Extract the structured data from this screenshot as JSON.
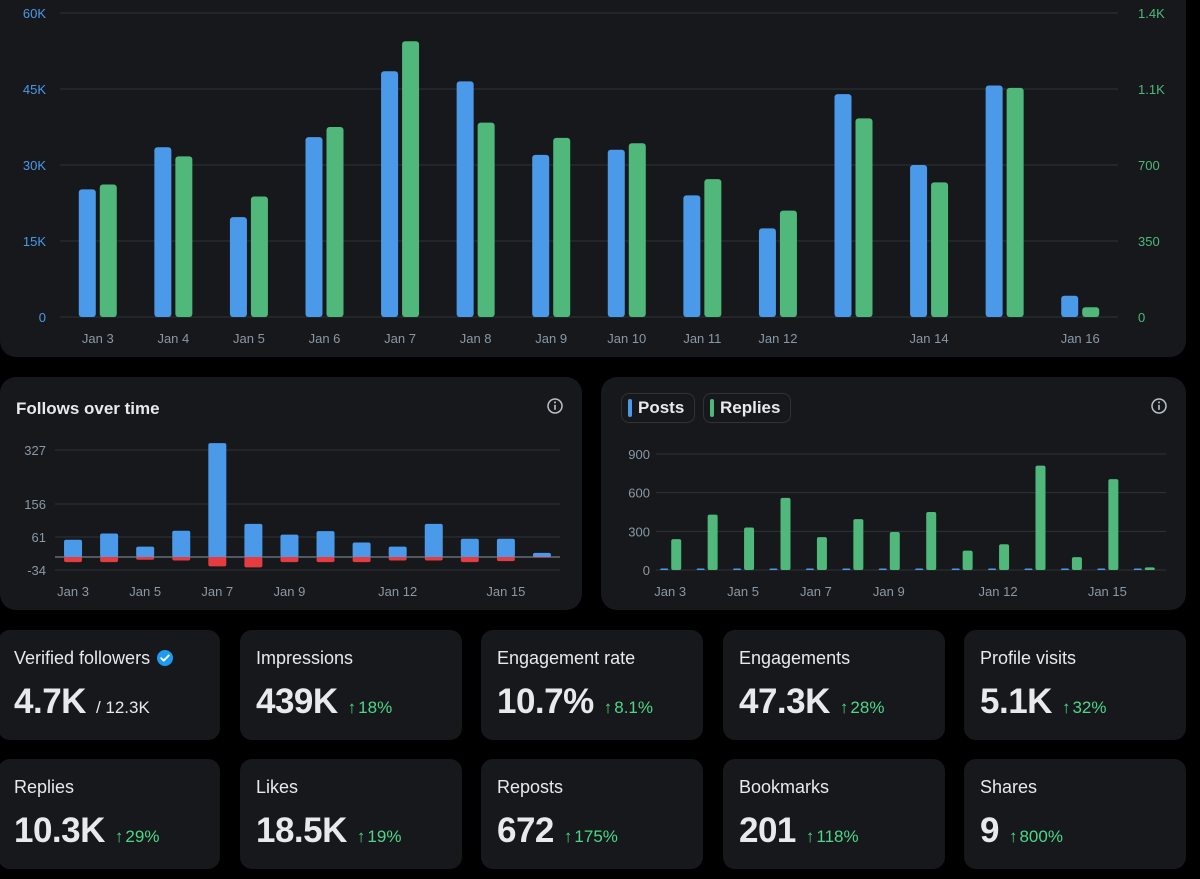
{
  "colors": {
    "posts": "#4a9ae9",
    "replies": "#4fb87a",
    "loss": "#e63b3f",
    "positive": "#4cd787",
    "grid": "#2f3336",
    "axis_text": "#8b98a5"
  },
  "chart_data": [
    {
      "id": "impressions_engagements",
      "type": "bar",
      "categories": [
        "Jan 3",
        "Jan 4",
        "Jan 5",
        "Jan 6",
        "Jan 7",
        "Jan 8",
        "Jan 9",
        "Jan 10",
        "Jan 11",
        "Jan 12",
        "Jan 13",
        "Jan 14",
        "Jan 15",
        "Jan 16"
      ],
      "x_tick_labels": [
        "Jan 3",
        "Jan 4",
        "Jan 5",
        "Jan 6",
        "Jan 7",
        "Jan 8",
        "Jan 9",
        "Jan 10",
        "Jan 11",
        "Jan 12",
        "",
        "Jan 14",
        "",
        "Jan 16"
      ],
      "series": [
        {
          "name": "Impressions",
          "axis": "left",
          "color": "#4a9ae9",
          "values": [
            25200,
            33500,
            19700,
            35500,
            48500,
            46500,
            32000,
            33000,
            24000,
            17500,
            44000,
            30000,
            45700,
            4200
          ]
        },
        {
          "name": "Engagements",
          "axis": "right",
          "color": "#4fb87a",
          "values": [
            610,
            740,
            555,
            875,
            1270,
            895,
            825,
            800,
            635,
            490,
            915,
            620,
            1055,
            45
          ]
        }
      ],
      "left_ticks": [
        "0",
        "15K",
        "30K",
        "45K",
        "60K"
      ],
      "right_ticks": [
        "0",
        "350",
        "700",
        "1.1K",
        "1.4K"
      ],
      "left_ylim": [
        0,
        60000
      ],
      "right_ylim": [
        0,
        1400
      ]
    },
    {
      "id": "follows_over_time",
      "type": "bar",
      "title": "Follows over time",
      "categories": [
        "Jan 3",
        "Jan 4",
        "Jan 5",
        "Jan 6",
        "Jan 7",
        "Jan 8",
        "Jan 9",
        "Jan 10",
        "Jan 11",
        "Jan 12",
        "Jan 13",
        "Jan 14",
        "Jan 15",
        "Jan 16"
      ],
      "x_tick_labels": [
        "Jan 3",
        "",
        "Jan 5",
        "",
        "Jan 7",
        "",
        "Jan 9",
        "",
        "",
        "Jan 12",
        "",
        "",
        "Jan 15",
        ""
      ],
      "series": [
        {
          "name": "Follows",
          "color": "#4a9ae9",
          "values": [
            50,
            68,
            30,
            76,
            330,
            96,
            65,
            75,
            42,
            30,
            96,
            53,
            53,
            12
          ]
        },
        {
          "name": "Unfollows",
          "color": "#e63b3f",
          "values": [
            -15,
            -15,
            -8,
            -10,
            -27,
            -30,
            -15,
            -15,
            -15,
            -10,
            -10,
            -15,
            -12,
            -2
          ]
        }
      ],
      "y_ticks": [
        "327",
        "156",
        "61",
        "-34"
      ]
    },
    {
      "id": "posts_replies",
      "type": "bar",
      "categories": [
        "Jan 3",
        "Jan 4",
        "Jan 5",
        "Jan 6",
        "Jan 7",
        "Jan 8",
        "Jan 9",
        "Jan 10",
        "Jan 11",
        "Jan 12",
        "Jan 13",
        "Jan 14",
        "Jan 15",
        "Jan 16"
      ],
      "x_tick_labels": [
        "Jan 3",
        "",
        "Jan 5",
        "",
        "Jan 7",
        "",
        "Jan 9",
        "",
        "",
        "Jan 12",
        "",
        "",
        "Jan 15",
        ""
      ],
      "series": [
        {
          "name": "Posts",
          "color": "#4a9ae9",
          "values": [
            2,
            4,
            4,
            4,
            2,
            3,
            3,
            2,
            2,
            3,
            5,
            2,
            12,
            2
          ]
        },
        {
          "name": "Replies",
          "color": "#4fb87a",
          "values": [
            240,
            430,
            330,
            560,
            255,
            395,
            295,
            450,
            150,
            200,
            810,
            100,
            705,
            20
          ]
        }
      ],
      "y_ticks": [
        "0",
        "300",
        "600",
        "900"
      ],
      "ylim": [
        0,
        900
      ]
    }
  ],
  "follows": {
    "title": "Follows over time"
  },
  "posts_replies": {
    "legend": [
      {
        "label": "Posts"
      },
      {
        "label": "Replies"
      }
    ]
  },
  "stats": [
    {
      "label": "Verified followers",
      "value": "4.7K",
      "sub": "/ 12.3K",
      "change": null,
      "verified": true
    },
    {
      "label": "Impressions",
      "value": "439K",
      "change": "18%"
    },
    {
      "label": "Engagement rate",
      "value": "10.7%",
      "change": "8.1%"
    },
    {
      "label": "Engagements",
      "value": "47.3K",
      "change": "28%"
    },
    {
      "label": "Profile visits",
      "value": "5.1K",
      "change": "32%"
    },
    {
      "label": "Replies",
      "value": "10.3K",
      "change": "29%"
    },
    {
      "label": "Likes",
      "value": "18.5K",
      "change": "19%"
    },
    {
      "label": "Reposts",
      "value": "672",
      "change": "175%"
    },
    {
      "label": "Bookmarks",
      "value": "201",
      "change": "118%"
    },
    {
      "label": "Shares",
      "value": "9",
      "change": "800%"
    }
  ],
  "arrow_glyph": "↑"
}
